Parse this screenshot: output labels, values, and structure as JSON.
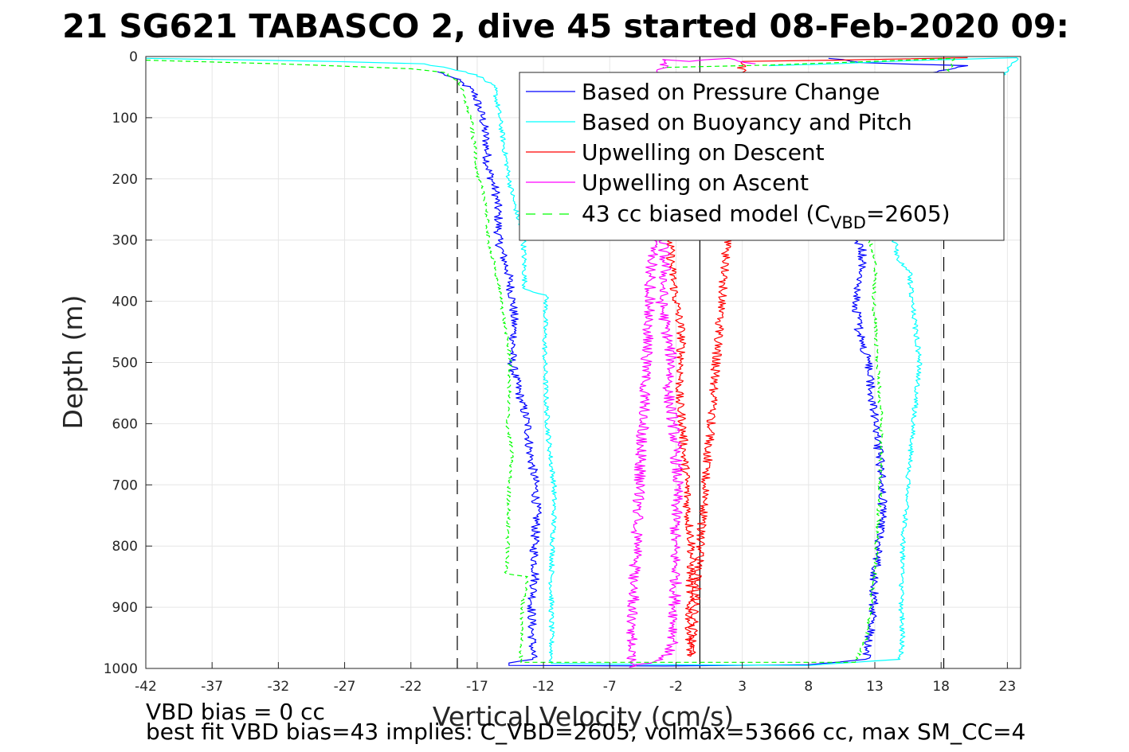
{
  "title": "21 SG621 TABASCO 2, dive 45 started 08-Feb-2020 09:",
  "footer": {
    "line1": "VBD bias = 0 cc",
    "line2": "best fit VBD bias=43 implies: C_VBD=2605, volmax=53666 cc, max SM_CC=4"
  },
  "legend": {
    "items": [
      {
        "key": "pressure",
        "label": "Based on Pressure Change",
        "color": "#0000ff",
        "dashed": false
      },
      {
        "key": "buoyancy",
        "label": "Based on Buoyancy and Pitch",
        "color": "#00ffff",
        "dashed": false
      },
      {
        "key": "descent",
        "label": "Upwelling on Descent",
        "color": "#ff0000",
        "dashed": false
      },
      {
        "key": "ascent",
        "label": "Upwelling on Ascent",
        "color": "#ff00ff",
        "dashed": false
      },
      {
        "key": "model",
        "label_main": "43 cc biased model (C",
        "label_sub": "VBD",
        "label_end": "=2605)",
        "color": "#00ff00",
        "dashed": true
      }
    ]
  },
  "chart_data": {
    "type": "line",
    "title": "21 SG621 TABASCO 2, dive 45 started 08-Feb-2020 09:",
    "xlabel": "Vertical Velocity (cm/s)",
    "ylabel": "Depth (m)",
    "xlim": [
      -42,
      24
    ],
    "ylim": [
      0,
      1000
    ],
    "y_reversed": true,
    "xticks": [
      -42,
      -37,
      -32,
      -27,
      -22,
      -17,
      -12,
      -7,
      -2,
      3,
      8,
      13,
      18,
      23
    ],
    "yticks": [
      0,
      100,
      200,
      300,
      400,
      500,
      600,
      700,
      800,
      900,
      1000
    ],
    "grid": true,
    "legend_position": "top-right",
    "reference_lines": {
      "dashed_x": [
        -18.5,
        18.2
      ],
      "solid_x": [
        -0.2
      ]
    },
    "series": [
      {
        "name": "Based on Pressure Change",
        "color": "#0000ff",
        "dashed": false,
        "noise": 0.35,
        "x": [
          -20,
          -19,
          -18,
          -17.2,
          -16.6,
          -16.3,
          -16.2,
          -15.6,
          -15.4,
          -15.4,
          -14.7,
          -14.3,
          -14.2,
          -14.4,
          -13.7,
          -13.2,
          -13.0,
          -12.6,
          -12.5,
          -12.7,
          -12.6,
          -12.9,
          -12.8,
          -14.6,
          -14.6,
          -2.8,
          8,
          12.3,
          12.6,
          12.9,
          13.0,
          13.3,
          13.6,
          13.5,
          13.0,
          12.5,
          11.8,
          11.6,
          12.0,
          12.1,
          11.5,
          14,
          20,
          12,
          10.6,
          9.5
        ],
        "y": [
          25,
          33,
          45,
          60,
          100,
          140,
          180,
          220,
          260,
          300,
          350,
          400,
          450,
          500,
          560,
          600,
          650,
          700,
          750,
          800,
          850,
          900,
          985,
          991,
          995,
          996,
          994,
          985,
          950,
          900,
          850,
          800,
          750,
          680,
          600,
          500,
          450,
          400,
          350,
          310,
          300,
          40,
          15,
          10,
          5,
          3
        ]
      },
      {
        "name": "Based on Buoyancy and Pitch",
        "color": "#00ffff",
        "dashed": false,
        "noise": 0.2,
        "x": [
          -42,
          -28,
          -21,
          -19,
          -17.0,
          -15.7,
          -15.3,
          -14.6,
          -14.2,
          -13.5,
          -13.4,
          -11.8,
          -11.9,
          -11.9,
          -11.8,
          -11.7,
          -11.5,
          -11.2,
          -11.2,
          -11.3,
          -11.4,
          -11.4,
          -11.4,
          -11.4,
          -2,
          8,
          14.9,
          15.1,
          15.0,
          15.1,
          15.5,
          15.9,
          16.4,
          15.8,
          15.6,
          14.7,
          14.6,
          14.4,
          23.7,
          14,
          10,
          5
        ],
        "y": [
          3,
          8,
          12,
          20,
          30,
          50,
          100,
          200,
          240,
          300,
          380,
          390,
          450,
          500,
          560,
          600,
          650,
          700,
          750,
          800,
          850,
          900,
          980,
          992,
          994,
          995,
          985,
          950,
          900,
          800,
          700,
          600,
          500,
          400,
          350,
          330,
          310,
          300,
          2,
          8,
          12,
          15
        ]
      },
      {
        "name": "Upwelling on Descent",
        "color": "#ff0000",
        "dashed": false,
        "noise": 0.35,
        "x": [
          -2.5,
          -2.3,
          -2.0,
          -1.6,
          -1.6,
          -1.8,
          -1.5,
          -1.4,
          -1.2,
          -1.1,
          -0.8,
          -0.9,
          -1.0,
          -0.9,
          3,
          10,
          20
        ],
        "y": [
          300,
          350,
          400,
          450,
          500,
          560,
          600,
          650,
          700,
          750,
          800,
          850,
          900,
          980,
          8,
          6,
          2
        ]
      },
      {
        "name": "Upwelling on Ascent",
        "color": "#ff00ff",
        "dashed": false,
        "noise": 0.45,
        "x": [
          -3.0,
          -2.8,
          -3.1,
          -2.7,
          -2.3,
          -2.6,
          -2.2,
          -2.0,
          -1.9,
          -2.0,
          -2.1,
          -2.0,
          -2.1,
          -2.2,
          -3.0,
          -5.5,
          -3,
          -1,
          2,
          4
        ],
        "y": [
          300,
          350,
          400,
          450,
          500,
          550,
          600,
          650,
          700,
          750,
          800,
          850,
          900,
          960,
          985,
          998,
          5,
          8,
          3,
          12
        ]
      },
      {
        "name": "43 cc biased model (CVBD=2605)",
        "color": "#00ff00",
        "dashed": true,
        "noise": 0.15,
        "x": [
          -42,
          -32,
          -22,
          -19.5,
          -18.4,
          -17.5,
          -16.9,
          -16.3,
          -16.2,
          -15.6,
          -15.2,
          -14.8,
          -14.5,
          -14.7,
          -14.4,
          -14.6,
          -14.7,
          -14.8,
          -13.2,
          -13.6,
          -13.7,
          11.5,
          12.4,
          12.7,
          13.0,
          13.1,
          13.3,
          13.4,
          13.5,
          13.2,
          12.9,
          13.1,
          12.6,
          19,
          12.8,
          5,
          -3
        ],
        "y": [
          6,
          12,
          20,
          26,
          40,
          100,
          200,
          240,
          300,
          350,
          400,
          450,
          500,
          600,
          650,
          700,
          800,
          845,
          850,
          900,
          990,
          990,
          950,
          900,
          850,
          800,
          750,
          700,
          600,
          500,
          400,
          340,
          300,
          3,
          8,
          14,
          18
        ]
      }
    ]
  }
}
